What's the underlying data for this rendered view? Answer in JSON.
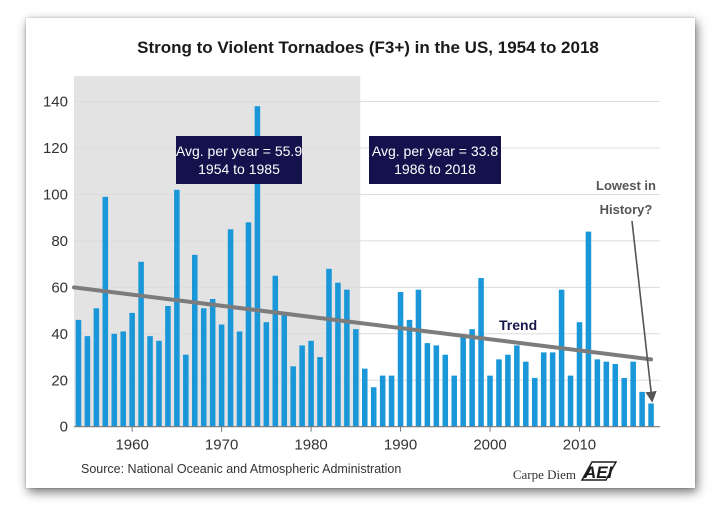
{
  "chart_data": {
    "type": "bar",
    "title": "Strong to Violent Tornadoes (F3+) in the US, 1954 to 2018",
    "xlabel": "",
    "ylabel": "",
    "x": [
      1954,
      1955,
      1956,
      1957,
      1958,
      1959,
      1960,
      1961,
      1962,
      1963,
      1964,
      1965,
      1966,
      1967,
      1968,
      1969,
      1970,
      1971,
      1972,
      1973,
      1974,
      1975,
      1976,
      1977,
      1978,
      1979,
      1980,
      1981,
      1982,
      1983,
      1984,
      1985,
      1986,
      1987,
      1988,
      1989,
      1990,
      1991,
      1992,
      1993,
      1994,
      1995,
      1996,
      1997,
      1998,
      1999,
      2000,
      2001,
      2002,
      2003,
      2004,
      2005,
      2006,
      2007,
      2008,
      2009,
      2010,
      2011,
      2012,
      2013,
      2014,
      2015,
      2016,
      2017,
      2018
    ],
    "values": [
      46,
      39,
      51,
      99,
      40,
      41,
      49,
      71,
      39,
      37,
      52,
      102,
      31,
      74,
      51,
      55,
      44,
      85,
      41,
      88,
      138,
      45,
      65,
      48,
      26,
      35,
      37,
      30,
      68,
      62,
      59,
      42,
      25,
      17,
      22,
      22,
      58,
      46,
      59,
      36,
      35,
      31,
      22,
      39,
      42,
      64,
      22,
      29,
      31,
      35,
      28,
      21,
      32,
      32,
      59,
      22,
      45,
      84,
      29,
      28,
      27,
      21,
      28,
      15,
      10
    ],
    "xlim": [
      1953.5,
      2019
    ],
    "ylim": [
      -4,
      151
    ],
    "xticks": [
      1960,
      1970,
      1980,
      1990,
      2000,
      2010
    ],
    "xtick_labels": [
      "1960",
      "1970",
      "1980",
      "1990",
      "2000",
      "2010"
    ],
    "yticks": [
      0,
      20,
      40,
      60,
      80,
      100,
      120,
      140
    ],
    "ytick_labels": [
      "0",
      "20",
      "40",
      "60",
      "80",
      "100",
      "120",
      "140"
    ],
    "grid": true,
    "shaded_period": [
      1954,
      1985
    ],
    "trend": {
      "label": "Trend",
      "start": [
        1954,
        60
      ],
      "end": [
        2018,
        29
      ]
    },
    "annotations": [
      {
        "name": "avg-1954-1985",
        "line1": "Avg. per year = 55.9",
        "line2": "1954 to 1985"
      },
      {
        "name": "avg-1986-2018",
        "line1": "Avg. per year = 33.8",
        "line2": "1986 to 2018"
      },
      {
        "name": "lowest-in-history",
        "line1": "Lowest in",
        "line2": "History?",
        "point": [
          2018,
          10
        ]
      }
    ],
    "source": "Source: National Oceanic and Atmospheric Administration",
    "brand": "Carpe Diem",
    "logo": "AEI",
    "colors": {
      "bar": "#1a97d8",
      "shade": "#e3e3e3",
      "trend": "#7c7c7c",
      "box": "#13124d",
      "grid": "#dcdcdc"
    }
  }
}
